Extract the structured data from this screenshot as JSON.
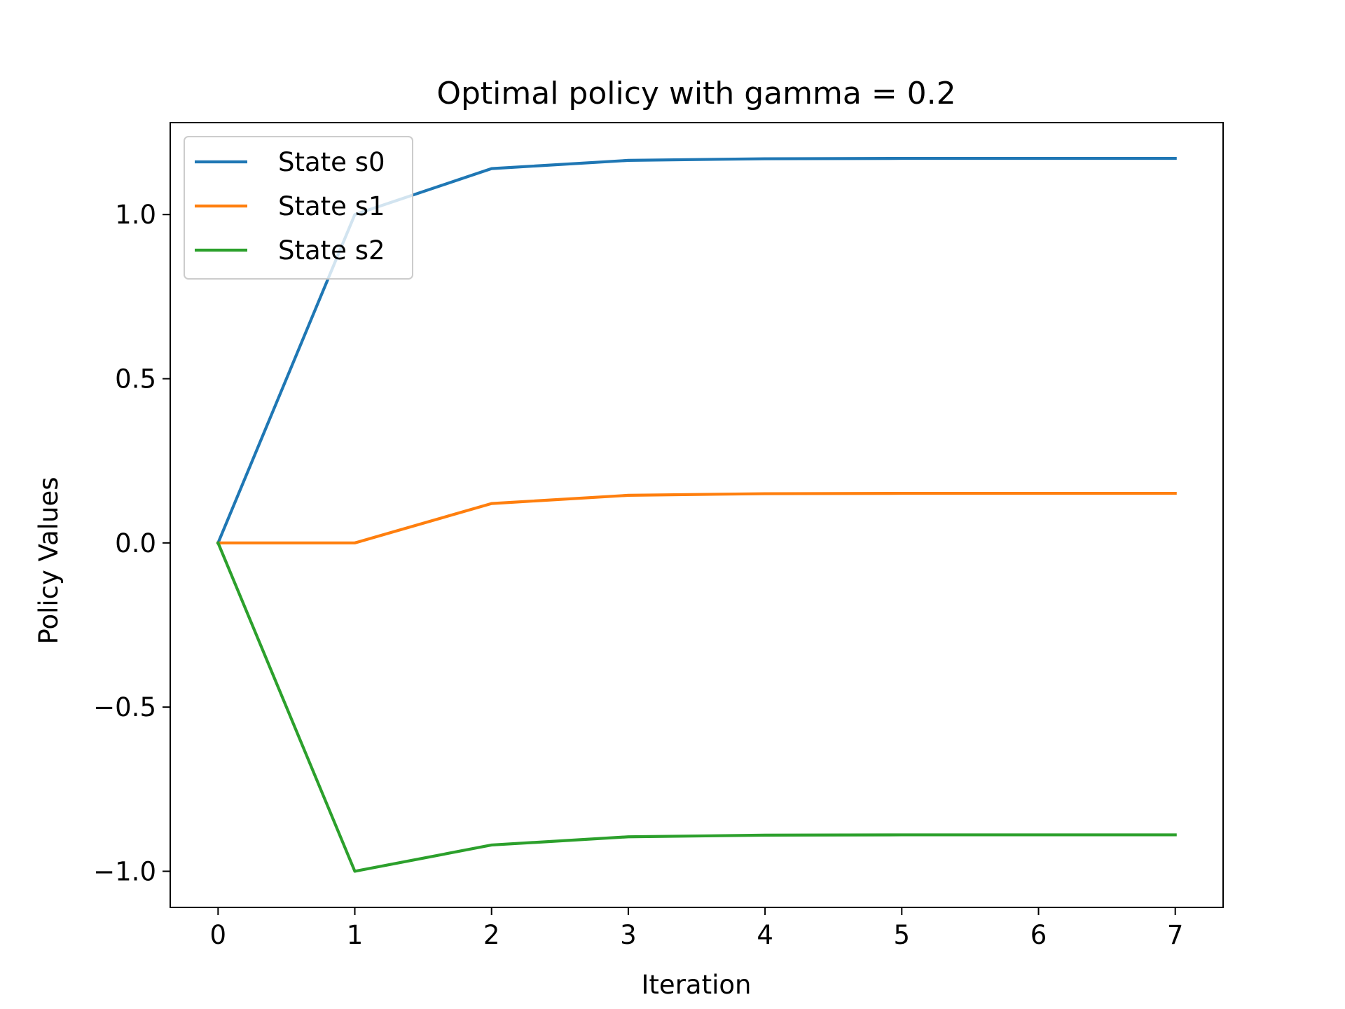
{
  "chart_data": {
    "type": "line",
    "title": "Optimal policy with gamma = 0.2",
    "xlabel": "Iteration",
    "ylabel": "Policy Values",
    "x": [
      0,
      1,
      2,
      3,
      4,
      5,
      6,
      7
    ],
    "xlim": [
      -0.35,
      7.35
    ],
    "ylim": [
      -1.11,
      1.28
    ],
    "xticks": [
      0,
      1,
      2,
      3,
      4,
      5,
      6,
      7
    ],
    "xtick_labels": [
      "0",
      "1",
      "2",
      "3",
      "4",
      "5",
      "6",
      "7"
    ],
    "yticks": [
      -1.0,
      -0.5,
      0.0,
      0.5,
      1.0
    ],
    "ytick_labels": [
      "−1.0",
      "−0.5",
      "0.0",
      "0.5",
      "1.0"
    ],
    "grid": false,
    "legend_position": "upper-left",
    "series": [
      {
        "name": "State s0",
        "color": "#1f77b4",
        "values": [
          0.0,
          1.0,
          1.14,
          1.165,
          1.17,
          1.171,
          1.171,
          1.171
        ]
      },
      {
        "name": "State s1",
        "color": "#ff7f0e",
        "values": [
          0.0,
          0.0,
          0.12,
          0.145,
          0.15,
          0.151,
          0.151,
          0.151
        ]
      },
      {
        "name": "State s2",
        "color": "#2ca02c",
        "values": [
          0.0,
          -1.0,
          -0.92,
          -0.895,
          -0.89,
          -0.889,
          -0.889,
          -0.889
        ]
      }
    ]
  }
}
